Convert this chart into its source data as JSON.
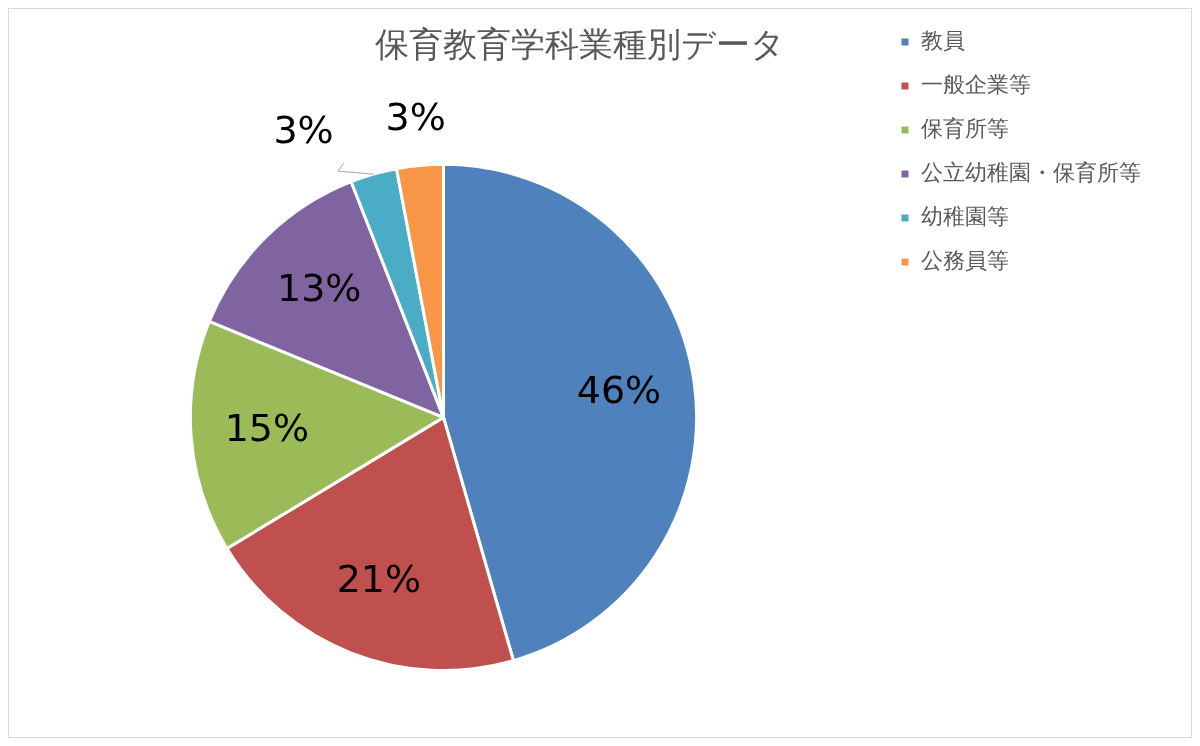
{
  "chart_data": {
    "type": "pie",
    "title": "保育教育学科業種別データ",
    "categories": [
      "教員",
      "一般企業等",
      "保育所等",
      "公立幼稚園・保育所等",
      "幼稚園等",
      "公務員等"
    ],
    "values": [
      46,
      21,
      15,
      13,
      3,
      3
    ],
    "value_labels": [
      "46%",
      "21%",
      "15%",
      "13%",
      "3%",
      "3%"
    ],
    "colors": [
      "#4f81bd",
      "#c0504d",
      "#9bbb59",
      "#8064a2",
      "#4bacc6",
      "#f79646"
    ],
    "legend": "right"
  }
}
